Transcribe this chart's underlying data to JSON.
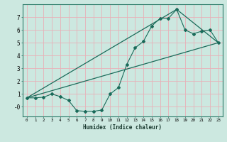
{
  "title": "",
  "xlabel": "Humidex (Indice chaleur)",
  "bg_color": "#cce8e0",
  "grid_color": "#e8b0b8",
  "line_color": "#1a6b5a",
  "xlim": [
    -0.5,
    23.5
  ],
  "ylim": [
    -0.75,
    8.0
  ],
  "xticks": [
    0,
    1,
    2,
    3,
    4,
    5,
    6,
    7,
    8,
    9,
    10,
    11,
    12,
    13,
    14,
    15,
    16,
    17,
    18,
    19,
    20,
    21,
    22,
    23
  ],
  "yticks": [
    0,
    1,
    2,
    3,
    4,
    5,
    6,
    7
  ],
  "ytick_labels": [
    "-0",
    "1",
    "2",
    "3",
    "4",
    "5",
    "6",
    "7"
  ],
  "line1_x": [
    0,
    1,
    2,
    3,
    4,
    5,
    6,
    7,
    8,
    9,
    10,
    11,
    12,
    13,
    14,
    15,
    16,
    17,
    18,
    19,
    20,
    21,
    22,
    23
  ],
  "line1_y": [
    0.7,
    0.7,
    0.75,
    1.0,
    0.8,
    0.5,
    -0.3,
    -0.35,
    -0.35,
    -0.25,
    1.0,
    1.5,
    3.3,
    4.6,
    5.1,
    6.3,
    6.9,
    6.9,
    7.6,
    6.0,
    5.7,
    5.9,
    6.0,
    5.0
  ],
  "line2_x": [
    0,
    23
  ],
  "line2_y": [
    0.7,
    5.0
  ],
  "line3_x": [
    0,
    18,
    23
  ],
  "line3_y": [
    0.7,
    7.6,
    5.0
  ]
}
